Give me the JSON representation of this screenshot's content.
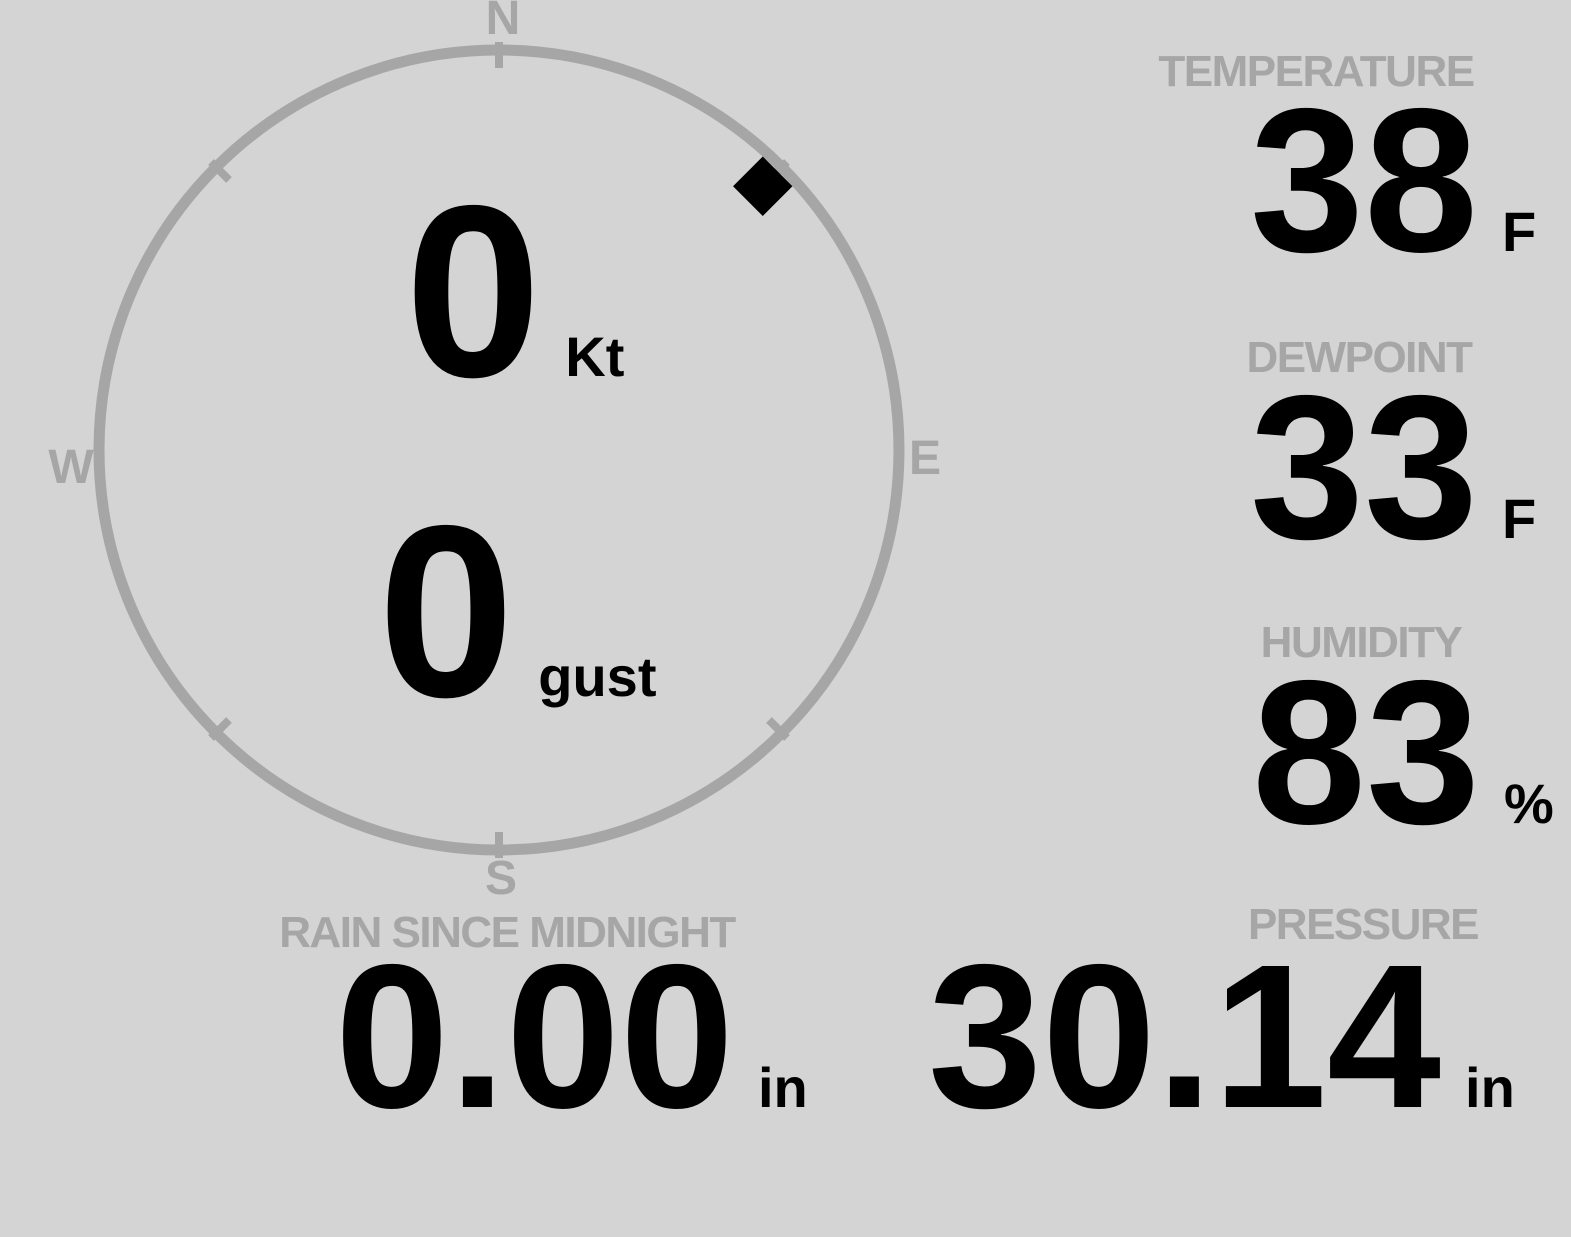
{
  "colors": {
    "background": "#d4d4d4",
    "muted": "#a6a6a6",
    "ink": "#000000"
  },
  "compass": {
    "cardinals": {
      "north": "N",
      "east": "E",
      "south": "S",
      "west": "W"
    },
    "wind_speed": {
      "value": "0",
      "unit": "Kt"
    },
    "wind_gust": {
      "value": "0",
      "unit": "gust"
    },
    "wind_direction_deg": 45
  },
  "metrics": {
    "temperature": {
      "label": "TEMPERATURE",
      "value": "38",
      "unit": "F"
    },
    "dewpoint": {
      "label": "DEWPOINT",
      "value": "33",
      "unit": "F"
    },
    "humidity": {
      "label": "HUMIDITY",
      "value": "83",
      "unit": "%"
    },
    "pressure": {
      "label": "PRESSURE",
      "value": "30.14",
      "unit": "in"
    },
    "rain_since_midnight": {
      "label": "RAIN SINCE MIDNIGHT",
      "value": "0.00",
      "unit": "in"
    }
  }
}
